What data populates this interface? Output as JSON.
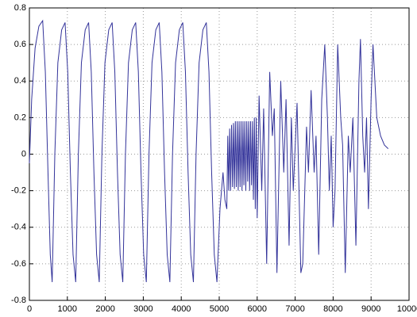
{
  "chart_data": {
    "type": "line",
    "color": "#33339a",
    "grid": true,
    "xlim": [
      0,
      10000
    ],
    "xticks": [
      0,
      1000,
      2000,
      3000,
      4000,
      5000,
      6000,
      7000,
      8000,
      9000,
      10000
    ],
    "ylim": [
      -0.8,
      0.8
    ],
    "yticks": [
      -0.8,
      -0.6,
      -0.4,
      -0.2,
      0,
      0.2,
      0.4,
      0.6,
      0.8
    ],
    "x": [
      0,
      60,
      150,
      250,
      350,
      420,
      490,
      550,
      600,
      670,
      750,
      850,
      940,
      1010,
      1080,
      1150,
      1220,
      1290,
      1370,
      1470,
      1560,
      1630,
      1700,
      1770,
      1840,
      1910,
      1990,
      2090,
      2180,
      2250,
      2320,
      2390,
      2460,
      2530,
      2610,
      2710,
      2800,
      2870,
      2940,
      3010,
      3080,
      3150,
      3230,
      3330,
      3420,
      3490,
      3560,
      3630,
      3700,
      3770,
      3850,
      3950,
      4040,
      4110,
      4180,
      4250,
      4320,
      4390,
      4470,
      4570,
      4660,
      4730,
      4800,
      4870,
      4940,
      5020,
      5100,
      5150,
      5200,
      5225,
      5250,
      5275,
      5300,
      5325,
      5350,
      5375,
      5400,
      5425,
      5450,
      5475,
      5500,
      5525,
      5550,
      5575,
      5600,
      5625,
      5650,
      5675,
      5700,
      5725,
      5750,
      5775,
      5800,
      5825,
      5850,
      5875,
      5900,
      5925,
      5950,
      5975,
      6000,
      6050,
      6120,
      6170,
      6250,
      6330,
      6400,
      6450,
      6520,
      6620,
      6700,
      6760,
      6840,
      6900,
      6950,
      7050,
      7150,
      7200,
      7300,
      7350,
      7420,
      7500,
      7550,
      7620,
      7700,
      7780,
      7850,
      7900,
      7950,
      8000,
      8050,
      8120,
      8200,
      8250,
      8320,
      8400,
      8450,
      8520,
      8600,
      8680,
      8720,
      8780,
      8830,
      8880,
      8930,
      9000,
      9050,
      9100,
      9150,
      9250,
      9350,
      9450
    ],
    "values": [
      -0.05,
      0.3,
      0.58,
      0.7,
      0.73,
      0.45,
      -0.1,
      -0.55,
      -0.7,
      0,
      0.5,
      0.68,
      0.72,
      0.45,
      -0.1,
      -0.55,
      -0.7,
      0,
      0.5,
      0.68,
      0.72,
      0.45,
      -0.1,
      -0.55,
      -0.7,
      0,
      0.5,
      0.68,
      0.72,
      0.45,
      -0.1,
      -0.55,
      -0.7,
      0,
      0.5,
      0.68,
      0.72,
      0.45,
      -0.1,
      -0.55,
      -0.7,
      0,
      0.5,
      0.68,
      0.72,
      0.45,
      -0.1,
      -0.55,
      -0.7,
      0,
      0.5,
      0.68,
      0.72,
      0.45,
      -0.1,
      -0.55,
      -0.7,
      0,
      0.5,
      0.68,
      0.72,
      0.45,
      -0.1,
      -0.55,
      -0.7,
      -0.3,
      -0.1,
      -0.25,
      -0.3,
      0.1,
      -0.2,
      0.14,
      -0.2,
      0.16,
      -0.18,
      0.17,
      -0.19,
      0.18,
      -0.18,
      0.18,
      -0.2,
      0.18,
      -0.18,
      0.18,
      -0.2,
      0.18,
      -0.17,
      0.18,
      -0.2,
      0.18,
      -0.15,
      0.18,
      -0.2,
      0.18,
      -0.17,
      0.18,
      -0.25,
      0.2,
      -0.3,
      0.2,
      -0.35,
      0.32,
      -0.2,
      0.25,
      -0.6,
      0.45,
      0.1,
      0.25,
      -0.65,
      0.4,
      -0.1,
      0.3,
      -0.5,
      0.2,
      -0.2,
      0.28,
      -0.65,
      -0.6,
      0.15,
      -0.1,
      0.35,
      -0.1,
      0.1,
      -0.55,
      0.3,
      0.6,
      0.2,
      -0.2,
      0.1,
      -0.4,
      -0.2,
      0.6,
      0.2,
      0.05,
      -0.65,
      0.1,
      -0.1,
      0.2,
      -0.5,
      0.4,
      0.63,
      0.1,
      -0.1,
      0.2,
      -0.3,
      0.3,
      0.6,
      0.4,
      0.2,
      0.1,
      0.05,
      0.03
    ]
  }
}
